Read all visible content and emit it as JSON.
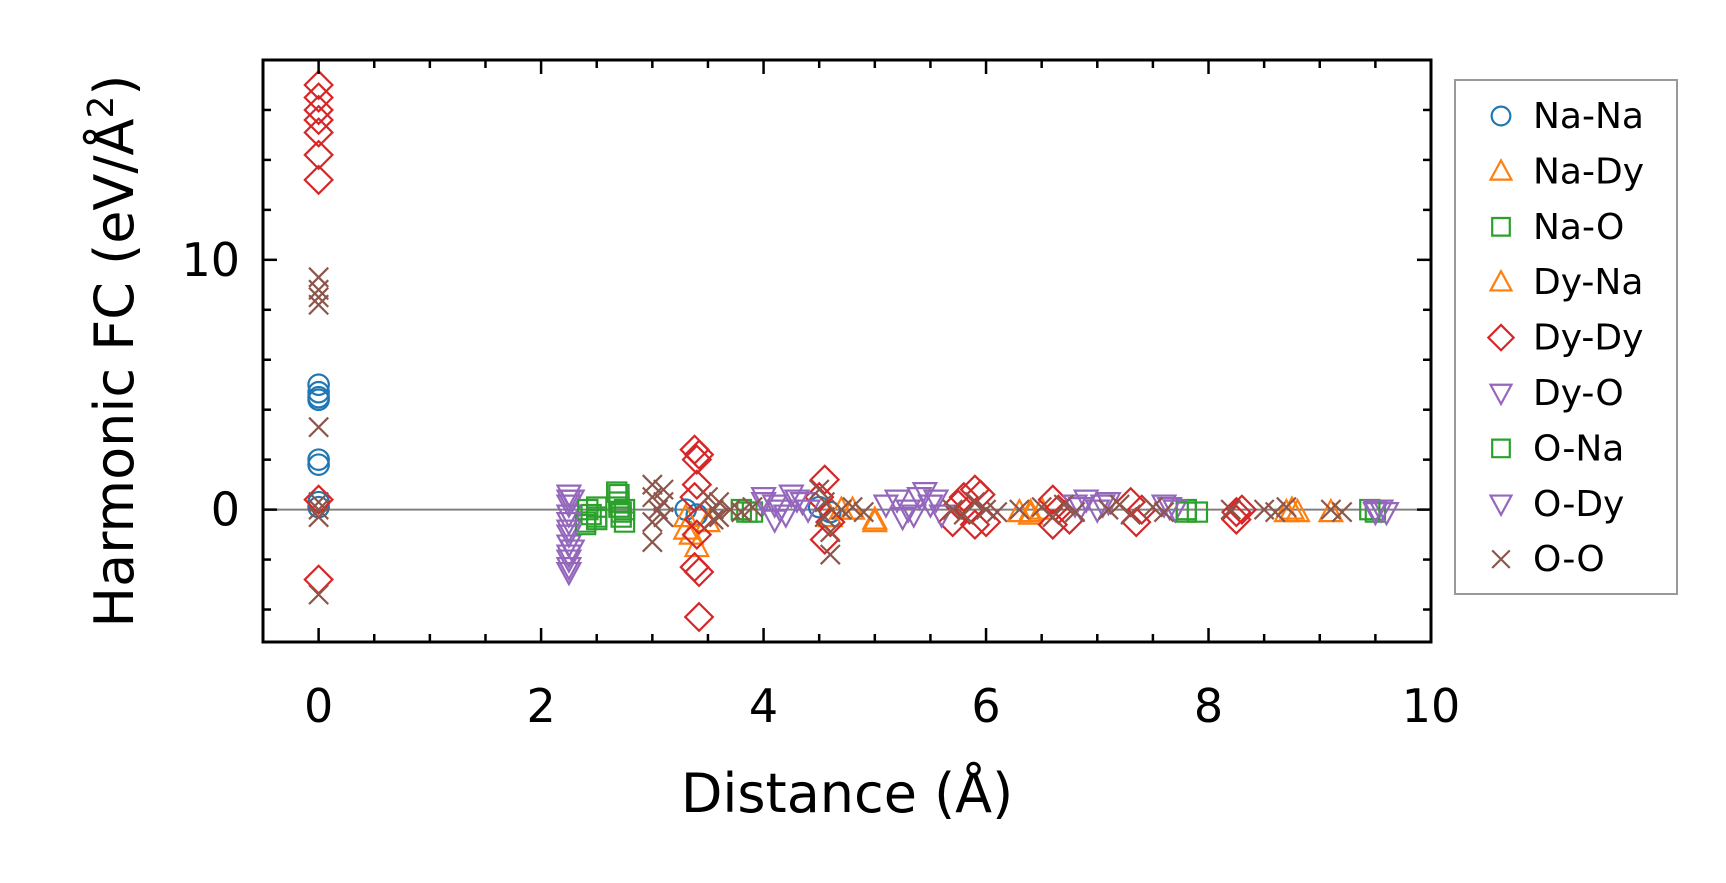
{
  "chart_data": {
    "type": "scatter",
    "xlabel": "Distance (Å)",
    "ylabel_main": "Harmonic FC (eV/Å",
    "ylabel_sup": "2",
    "ylabel_close": ")",
    "xlim": [
      -0.5,
      10
    ],
    "ylim": [
      -5.3,
      18
    ],
    "xticks": [
      0,
      2,
      4,
      6,
      8,
      10
    ],
    "xtick_labels": [
      "0",
      "2",
      "4",
      "6",
      "8",
      "10"
    ],
    "yticks": [
      0,
      10
    ],
    "ytick_labels": [
      "0",
      "10"
    ],
    "zero_line": true,
    "legend_position": "right",
    "series": [
      {
        "name": "Na-Na",
        "marker": "circle",
        "color": "#1f77b4",
        "points": [
          [
            0,
            5.0
          ],
          [
            0,
            4.7
          ],
          [
            0,
            4.4
          ],
          [
            0,
            4.5
          ],
          [
            0,
            2.0
          ],
          [
            0,
            1.8
          ],
          [
            0,
            0.3
          ],
          [
            0,
            0.1
          ],
          [
            3.3,
            0.0
          ],
          [
            3.4,
            -0.2
          ],
          [
            4.5,
            0.1
          ],
          [
            4.6,
            -0.1
          ]
        ]
      },
      {
        "name": "Na-Dy",
        "marker": "triangle-up",
        "color": "#ff7f0e",
        "points": [
          [
            3.3,
            -0.8
          ],
          [
            3.4,
            -1.5
          ],
          [
            3.5,
            -0.5
          ],
          [
            4.7,
            0.0
          ],
          [
            5.0,
            -0.5
          ],
          [
            6.4,
            -0.2
          ],
          [
            6.5,
            0.0
          ],
          [
            8.8,
            -0.1
          ],
          [
            9.1,
            -0.1
          ]
        ]
      },
      {
        "name": "Na-O",
        "marker": "square",
        "color": "#2ca02c",
        "points": [
          [
            2.4,
            -0.5
          ],
          [
            2.45,
            -0.2
          ],
          [
            2.5,
            0.1
          ],
          [
            2.5,
            -0.4
          ],
          [
            2.7,
            0.6
          ],
          [
            2.7,
            0.3
          ],
          [
            2.72,
            -0.1
          ],
          [
            2.75,
            -0.5
          ],
          [
            2.75,
            0.0
          ],
          [
            3.8,
            0.0
          ],
          [
            3.9,
            -0.1
          ],
          [
            7.8,
            0.0
          ],
          [
            7.9,
            -0.1
          ],
          [
            9.5,
            -0.1
          ]
        ]
      },
      {
        "name": "Dy-Na",
        "marker": "triangle-up",
        "color": "#ff7f0e",
        "points": [
          [
            3.3,
            -0.3
          ],
          [
            3.35,
            -1.0
          ],
          [
            4.6,
            -0.3
          ],
          [
            4.8,
            0.0
          ],
          [
            5.0,
            -0.4
          ],
          [
            6.3,
            -0.1
          ],
          [
            6.4,
            -0.1
          ],
          [
            8.7,
            -0.1
          ],
          [
            8.75,
            0.0
          ]
        ]
      },
      {
        "name": "Dy-Dy",
        "marker": "diamond",
        "color": "#d62728",
        "points": [
          [
            0,
            17.0
          ],
          [
            0,
            16.5
          ],
          [
            0,
            16.0
          ],
          [
            0,
            15.6
          ],
          [
            0,
            15.1
          ],
          [
            0,
            14.2
          ],
          [
            0,
            13.2
          ],
          [
            0,
            0.4
          ],
          [
            0,
            -2.8
          ],
          [
            3.38,
            2.4
          ],
          [
            3.42,
            2.2
          ],
          [
            3.4,
            2.0
          ],
          [
            3.4,
            1.0
          ],
          [
            3.38,
            0.5
          ],
          [
            3.42,
            -0.4
          ],
          [
            3.4,
            -1.0
          ],
          [
            3.38,
            -2.3
          ],
          [
            3.42,
            -2.5
          ],
          [
            3.42,
            -4.3
          ],
          [
            4.55,
            1.2
          ],
          [
            4.5,
            0.5
          ],
          [
            4.6,
            -0.5
          ],
          [
            4.55,
            -1.2
          ],
          [
            5.7,
            -0.5
          ],
          [
            5.8,
            0.5
          ],
          [
            5.85,
            0.0
          ],
          [
            5.9,
            -0.6
          ],
          [
            5.95,
            0.6
          ],
          [
            6.0,
            -0.5
          ],
          [
            5.75,
            0.2
          ],
          [
            5.9,
            0.8
          ],
          [
            6.6,
            0.4
          ],
          [
            6.6,
            -0.6
          ],
          [
            6.65,
            0.0
          ],
          [
            6.75,
            -0.4
          ],
          [
            7.3,
            0.3
          ],
          [
            7.35,
            -0.5
          ],
          [
            7.4,
            0.0
          ],
          [
            8.25,
            -0.1
          ],
          [
            8.25,
            -0.4
          ],
          [
            8.3,
            0.0
          ]
        ]
      },
      {
        "name": "Dy-O",
        "marker": "triangle-down",
        "color": "#9467bd",
        "points": [
          [
            2.25,
            0.6
          ],
          [
            2.25,
            0.2
          ],
          [
            2.25,
            -0.2
          ],
          [
            2.25,
            -0.8
          ],
          [
            2.25,
            -1.4
          ],
          [
            2.25,
            -2.0
          ],
          [
            2.25,
            -2.5
          ],
          [
            2.28,
            0.4
          ],
          [
            2.28,
            -1.6
          ],
          [
            4.0,
            0.5
          ],
          [
            4.1,
            0.2
          ],
          [
            4.2,
            -0.2
          ],
          [
            4.3,
            0.4
          ],
          [
            4.4,
            0.0
          ],
          [
            4.1,
            -0.4
          ],
          [
            4.25,
            0.6
          ],
          [
            5.2,
            0.4
          ],
          [
            5.3,
            0.0
          ],
          [
            5.4,
            0.5
          ],
          [
            5.5,
            0.2
          ],
          [
            5.6,
            -0.2
          ],
          [
            5.25,
            -0.3
          ],
          [
            5.45,
            0.7
          ],
          [
            6.8,
            0.2
          ],
          [
            6.9,
            0.4
          ],
          [
            7.0,
            0.0
          ],
          [
            7.1,
            0.3
          ],
          [
            7.6,
            0.2
          ],
          [
            7.7,
            0.0
          ],
          [
            9.5,
            -0.1
          ],
          [
            9.55,
            0.0
          ],
          [
            9.6,
            -0.1
          ]
        ]
      },
      {
        "name": "O-Na",
        "marker": "square",
        "color": "#2ca02c",
        "points": [
          [
            2.4,
            -0.6
          ],
          [
            2.42,
            0.0
          ],
          [
            2.5,
            -0.3
          ],
          [
            2.68,
            0.7
          ],
          [
            2.7,
            0.1
          ],
          [
            2.72,
            -0.3
          ],
          [
            3.85,
            -0.1
          ],
          [
            7.8,
            -0.1
          ],
          [
            9.45,
            0.0
          ]
        ]
      },
      {
        "name": "O-Dy",
        "marker": "triangle-down",
        "color": "#9467bd",
        "points": [
          [
            2.25,
            0.4
          ],
          [
            2.25,
            -0.5
          ],
          [
            2.25,
            -1.0
          ],
          [
            2.25,
            -1.8
          ],
          [
            2.25,
            -2.3
          ],
          [
            4.0,
            0.3
          ],
          [
            4.15,
            0.0
          ],
          [
            4.35,
            0.3
          ],
          [
            5.1,
            0.2
          ],
          [
            5.35,
            -0.2
          ],
          [
            5.55,
            0.4
          ],
          [
            6.85,
            0.1
          ],
          [
            7.05,
            0.2
          ],
          [
            7.65,
            0.1
          ],
          [
            9.5,
            0.0
          ]
        ]
      },
      {
        "name": "O-O",
        "marker": "x",
        "color": "#8c564b",
        "points": [
          [
            0,
            9.3
          ],
          [
            0,
            8.8
          ],
          [
            0,
            8.5
          ],
          [
            0,
            8.2
          ],
          [
            0,
            3.3
          ],
          [
            0,
            0.3
          ],
          [
            0,
            0.0
          ],
          [
            0,
            -0.3
          ],
          [
            0,
            -3.4
          ],
          [
            3.0,
            1.0
          ],
          [
            3.0,
            0.5
          ],
          [
            3.05,
            0.0
          ],
          [
            3.0,
            -0.5
          ],
          [
            3.0,
            -1.3
          ],
          [
            3.1,
            0.3
          ],
          [
            3.1,
            -0.3
          ],
          [
            3.1,
            0.8
          ],
          [
            3.5,
            0.5
          ],
          [
            3.55,
            -0.4
          ],
          [
            3.55,
            0.0
          ],
          [
            3.6,
            0.3
          ],
          [
            3.6,
            -0.3
          ],
          [
            3.7,
            0.0
          ],
          [
            3.8,
            -0.1
          ],
          [
            3.9,
            0.1
          ],
          [
            4.5,
            0.8
          ],
          [
            4.55,
            0.3
          ],
          [
            4.55,
            -0.3
          ],
          [
            4.6,
            -0.9
          ],
          [
            4.6,
            -1.8
          ],
          [
            4.7,
            0.0
          ],
          [
            4.8,
            0.1
          ],
          [
            4.9,
            -0.1
          ],
          [
            5.7,
            0.0
          ],
          [
            5.8,
            -0.2
          ],
          [
            5.9,
            0.3
          ],
          [
            6.0,
            0.0
          ],
          [
            6.1,
            -0.1
          ],
          [
            6.3,
            0.0
          ],
          [
            6.5,
            0.1
          ],
          [
            6.6,
            -0.3
          ],
          [
            6.7,
            0.2
          ],
          [
            6.8,
            -0.1
          ],
          [
            7.1,
            0.0
          ],
          [
            7.2,
            0.2
          ],
          [
            7.3,
            -0.2
          ],
          [
            7.5,
            0.1
          ],
          [
            7.6,
            -0.1
          ],
          [
            8.2,
            0.0
          ],
          [
            8.5,
            0.0
          ],
          [
            8.6,
            -0.1
          ],
          [
            8.7,
            0.1
          ],
          [
            9.1,
            0.0
          ],
          [
            9.2,
            -0.1
          ]
        ]
      }
    ]
  }
}
